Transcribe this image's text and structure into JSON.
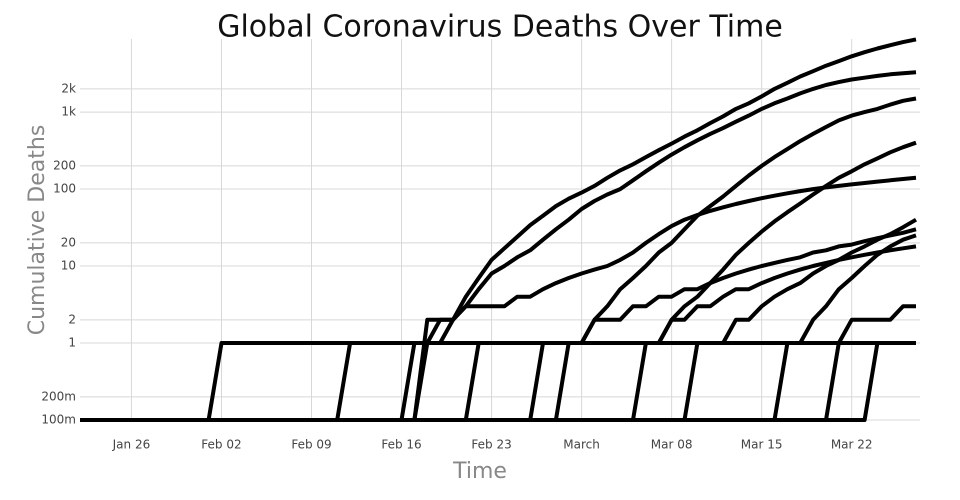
{
  "chart_data": {
    "type": "line",
    "title": "Global Coronavirus Deaths Over Time",
    "xlabel": "Time",
    "ylabel": "Cumulative Deaths",
    "log_y": true,
    "grid": true,
    "x": [
      "Jan 22",
      "Jan 23",
      "Jan 24",
      "Jan 25",
      "Jan 26",
      "Jan 27",
      "Jan 28",
      "Jan 29",
      "Jan 30",
      "Jan 31",
      "Feb 01",
      "Feb 02",
      "Feb 03",
      "Feb 04",
      "Feb 05",
      "Feb 06",
      "Feb 07",
      "Feb 08",
      "Feb 09",
      "Feb 10",
      "Feb 11",
      "Feb 12",
      "Feb 13",
      "Feb 14",
      "Feb 15",
      "Feb 16",
      "Feb 17",
      "Feb 18",
      "Feb 19",
      "Feb 20",
      "Feb 21",
      "Feb 22",
      "Feb 23",
      "Feb 24",
      "Feb 25",
      "Feb 26",
      "Feb 27",
      "Feb 28",
      "Feb 29",
      "Mar 01",
      "Mar 02",
      "Mar 03",
      "Mar 04",
      "Mar 05",
      "Mar 06",
      "Mar 07",
      "Mar 08",
      "Mar 09",
      "Mar 10",
      "Mar 11",
      "Mar 12",
      "Mar 13",
      "Mar 14",
      "Mar 15",
      "Mar 16",
      "Mar 17",
      "Mar 18",
      "Mar 19",
      "Mar 20",
      "Mar 21",
      "Mar 22",
      "Mar 23",
      "Mar 24",
      "Mar 25",
      "Mar 26",
      "Mar 27"
    ],
    "xlim": [
      "Jan 22",
      "Mar 27"
    ],
    "xticks": [
      "Jan 26",
      "Feb 02",
      "Feb 09",
      "Feb 16",
      "Feb 23",
      {
        "value": "Mar 01",
        "label": "March"
      },
      "Mar 08",
      "Mar 15",
      "Mar 22"
    ],
    "ylim": [
      0.1,
      8900
    ],
    "yticks": [
      {
        "value": 0.1,
        "label": "100m"
      },
      {
        "value": 0.2,
        "label": "200m"
      },
      1,
      2,
      10,
      20,
      100,
      200,
      {
        "value": 1000,
        "label": "1k"
      },
      {
        "value": 2000,
        "label": "2k"
      }
    ],
    "series": [
      {
        "color": "#000000",
        "values": [
          0.1,
          0.1,
          0.1,
          0.1,
          0.1,
          0.1,
          0.1,
          0.1,
          0.1,
          0.1,
          0.1,
          0.1,
          0.1,
          0.1,
          0.1,
          0.1,
          0.1,
          0.1,
          0.1,
          0.1,
          0.1,
          0.1,
          0.1,
          0.1,
          0.1,
          0.1,
          0.1,
          1,
          1,
          2,
          4,
          7,
          12,
          17,
          24,
          34,
          45,
          60,
          75,
          90,
          110,
          140,
          175,
          210,
          260,
          320,
          390,
          480,
          580,
          720,
          880,
          1100,
          1300,
          1600,
          2000,
          2400,
          2900,
          3400,
          4000,
          4600,
          5300,
          6000,
          6700,
          7400,
          8100,
          8800
        ]
      },
      {
        "color": "#000000",
        "values": [
          0.1,
          0.1,
          0.1,
          0.1,
          0.1,
          0.1,
          0.1,
          0.1,
          0.1,
          0.1,
          0.1,
          1,
          1,
          1,
          1,
          1,
          1,
          1,
          1,
          1,
          1,
          1,
          1,
          1,
          1,
          1,
          1,
          1,
          2,
          2,
          3,
          5,
          8,
          10,
          13,
          16,
          22,
          30,
          40,
          55,
          70,
          85,
          100,
          130,
          170,
          220,
          280,
          350,
          430,
          520,
          620,
          750,
          900,
          1100,
          1300,
          1500,
          1750,
          2000,
          2250,
          2450,
          2650,
          2800,
          2950,
          3100,
          3200,
          3300
        ]
      },
      {
        "color": "#000000",
        "values": [
          0.1,
          0.1,
          0.1,
          0.1,
          0.1,
          0.1,
          0.1,
          0.1,
          0.1,
          0.1,
          0.1,
          0.1,
          0.1,
          0.1,
          0.1,
          0.1,
          0.1,
          0.1,
          0.1,
          0.1,
          0.1,
          0.1,
          0.1,
          0.1,
          0.1,
          0.1,
          0.1,
          2,
          2,
          2,
          3,
          3,
          3,
          3,
          4,
          4,
          5,
          6,
          7,
          8,
          9,
          10,
          12,
          15,
          20,
          26,
          33,
          40,
          46,
          52,
          58,
          64,
          70,
          76,
          82,
          88,
          94,
          100,
          105,
          110,
          115,
          120,
          125,
          130,
          135,
          140
        ]
      },
      {
        "color": "#000000",
        "values": [
          0.1,
          0.1,
          0.1,
          0.1,
          0.1,
          0.1,
          0.1,
          0.1,
          0.1,
          0.1,
          0.1,
          0.1,
          0.1,
          0.1,
          0.1,
          0.1,
          0.1,
          0.1,
          0.1,
          0.1,
          0.1,
          0.1,
          0.1,
          0.1,
          0.1,
          0.1,
          0.1,
          0.1,
          0.1,
          0.1,
          0.1,
          0.1,
          0.1,
          0.1,
          0.1,
          0.1,
          0.1,
          0.1,
          1,
          1,
          2,
          3,
          5,
          7,
          10,
          15,
          20,
          30,
          45,
          60,
          80,
          110,
          150,
          200,
          260,
          330,
          420,
          520,
          640,
          780,
          900,
          1000,
          1100,
          1250,
          1400,
          1500
        ]
      },
      {
        "color": "#000000",
        "values": [
          0.1,
          0.1,
          0.1,
          0.1,
          0.1,
          0.1,
          0.1,
          0.1,
          0.1,
          0.1,
          0.1,
          0.1,
          0.1,
          0.1,
          0.1,
          0.1,
          0.1,
          0.1,
          0.1,
          0.1,
          0.1,
          0.1,
          0.1,
          0.1,
          0.1,
          0.1,
          0.1,
          0.1,
          0.1,
          0.1,
          0.1,
          0.1,
          0.1,
          0.1,
          0.1,
          0.1,
          0.1,
          0.1,
          0.1,
          0.1,
          0.1,
          0.1,
          0.1,
          0.1,
          1,
          1,
          2,
          3,
          4,
          6,
          9,
          14,
          20,
          28,
          38,
          50,
          65,
          85,
          110,
          140,
          170,
          210,
          250,
          300,
          350,
          400
        ]
      },
      {
        "color": "#000000",
        "values": [
          0.1,
          0.1,
          0.1,
          0.1,
          0.1,
          0.1,
          0.1,
          0.1,
          0.1,
          0.1,
          0.1,
          0.1,
          0.1,
          0.1,
          0.1,
          0.1,
          0.1,
          0.1,
          0.1,
          0.1,
          0.1,
          0.1,
          0.1,
          0.1,
          0.1,
          0.1,
          0.1,
          0.1,
          0.1,
          0.1,
          0.1,
          0.1,
          0.1,
          0.1,
          0.1,
          0.1,
          1,
          1,
          1,
          1,
          2,
          2,
          2,
          3,
          3,
          4,
          4,
          5,
          5,
          6,
          7,
          8,
          9,
          10,
          11,
          12,
          13,
          15,
          16,
          18,
          19,
          21,
          23,
          25,
          27,
          30
        ]
      },
      {
        "color": "#000000",
        "values": [
          0.1,
          0.1,
          0.1,
          0.1,
          0.1,
          0.1,
          0.1,
          0.1,
          0.1,
          0.1,
          0.1,
          0.1,
          0.1,
          0.1,
          0.1,
          0.1,
          0.1,
          0.1,
          0.1,
          0.1,
          0.1,
          1,
          1,
          1,
          1,
          1,
          1,
          1,
          1,
          1,
          1,
          1,
          1,
          1,
          1,
          1,
          1,
          1,
          1,
          1,
          1,
          1,
          1,
          1,
          1,
          1,
          1,
          1,
          1,
          1,
          1,
          1,
          1,
          1,
          1,
          1,
          1,
          1,
          1,
          1,
          2,
          2,
          2,
          2,
          3,
          3
        ]
      },
      {
        "color": "#000000",
        "values": [
          0.1,
          0.1,
          0.1,
          0.1,
          0.1,
          0.1,
          0.1,
          0.1,
          0.1,
          0.1,
          0.1,
          0.1,
          0.1,
          0.1,
          0.1,
          0.1,
          0.1,
          0.1,
          0.1,
          0.1,
          0.1,
          0.1,
          0.1,
          0.1,
          0.1,
          0.1,
          0.1,
          0.1,
          0.1,
          0.1,
          0.1,
          0.1,
          0.1,
          0.1,
          0.1,
          0.1,
          0.1,
          0.1,
          0.1,
          0.1,
          0.1,
          0.1,
          0.1,
          0.1,
          0.1,
          0.1,
          0.1,
          0.1,
          0.1,
          0.1,
          0.1,
          0.1,
          0.1,
          0.1,
          0.1,
          1,
          1,
          2,
          3,
          5,
          7,
          10,
          14,
          18,
          22,
          25
        ]
      },
      {
        "color": "#000000",
        "values": [
          0.1,
          0.1,
          0.1,
          0.1,
          0.1,
          0.1,
          0.1,
          0.1,
          0.1,
          0.1,
          0.1,
          0.1,
          0.1,
          0.1,
          0.1,
          0.1,
          0.1,
          0.1,
          0.1,
          0.1,
          0.1,
          0.1,
          0.1,
          0.1,
          0.1,
          0.1,
          1,
          1,
          1,
          1,
          1,
          1,
          1,
          1,
          1,
          1,
          1,
          1,
          1,
          1,
          1,
          1,
          1,
          1,
          1,
          1,
          1,
          1,
          1,
          1,
          1,
          1,
          1,
          1,
          1,
          1,
          1,
          1,
          1,
          1,
          1,
          1,
          1,
          1,
          1,
          1
        ]
      },
      {
        "color": "#000000",
        "values": [
          0.1,
          0.1,
          0.1,
          0.1,
          0.1,
          0.1,
          0.1,
          0.1,
          0.1,
          0.1,
          0.1,
          0.1,
          0.1,
          0.1,
          0.1,
          0.1,
          0.1,
          0.1,
          0.1,
          0.1,
          0.1,
          0.1,
          0.1,
          0.1,
          0.1,
          0.1,
          0.1,
          0.1,
          0.1,
          0.1,
          0.1,
          0.1,
          0.1,
          0.1,
          0.1,
          0.1,
          0.1,
          0.1,
          0.1,
          0.1,
          0.1,
          0.1,
          0.1,
          0.1,
          0.1,
          0.1,
          0.1,
          0.1,
          1,
          1,
          1,
          2,
          2,
          3,
          4,
          5,
          6,
          8,
          10,
          12,
          15,
          18,
          22,
          26,
          32,
          40
        ]
      },
      {
        "color": "#000000",
        "values": [
          0.1,
          0.1,
          0.1,
          0.1,
          0.1,
          0.1,
          0.1,
          0.1,
          0.1,
          0.1,
          0.1,
          0.1,
          0.1,
          0.1,
          0.1,
          0.1,
          0.1,
          0.1,
          0.1,
          0.1,
          0.1,
          0.1,
          0.1,
          0.1,
          0.1,
          0.1,
          0.1,
          0.1,
          0.1,
          0.1,
          0.1,
          0.1,
          0.1,
          0.1,
          0.1,
          0.1,
          0.1,
          0.1,
          0.1,
          0.1,
          0.1,
          0.1,
          0.1,
          0.1,
          0.1,
          0.1,
          0.1,
          0.1,
          0.1,
          0.1,
          0.1,
          0.1,
          0.1,
          0.1,
          0.1,
          0.1,
          0.1,
          0.1,
          0.1,
          1,
          1,
          1,
          1,
          1,
          1,
          1
        ]
      },
      {
        "color": "#000000",
        "values": [
          0.1,
          0.1,
          0.1,
          0.1,
          0.1,
          0.1,
          0.1,
          0.1,
          0.1,
          0.1,
          0.1,
          0.1,
          0.1,
          0.1,
          0.1,
          0.1,
          0.1,
          0.1,
          0.1,
          0.1,
          0.1,
          0.1,
          0.1,
          0.1,
          0.1,
          0.1,
          0.1,
          0.1,
          0.1,
          0.1,
          0.1,
          0.1,
          0.1,
          0.1,
          0.1,
          0.1,
          0.1,
          0.1,
          0.1,
          0.1,
          0.1,
          0.1,
          0.1,
          0.1,
          0.1,
          0.1,
          0.1,
          0.1,
          0.1,
          0.1,
          0.1,
          0.1,
          0.1,
          0.1,
          0.1,
          0.1,
          0.1,
          0.1,
          0.1,
          0.1,
          0.1,
          0.1,
          1,
          1,
          1,
          1
        ]
      },
      {
        "color": "#000000",
        "values": [
          0.1,
          0.1,
          0.1,
          0.1,
          0.1,
          0.1,
          0.1,
          0.1,
          0.1,
          0.1,
          0.1,
          0.1,
          0.1,
          0.1,
          0.1,
          0.1,
          0.1,
          0.1,
          0.1,
          0.1,
          0.1,
          0.1,
          0.1,
          0.1,
          0.1,
          0.1,
          0.1,
          0.1,
          0.1,
          0.1,
          0.1,
          1,
          1,
          1,
          1,
          1,
          1,
          1,
          1,
          1,
          1,
          1,
          1,
          1,
          1,
          1,
          2,
          2,
          3,
          3,
          4,
          5,
          5,
          6,
          7,
          8,
          9,
          10,
          11,
          12,
          13,
          14,
          15,
          16,
          17,
          18
        ]
      }
    ]
  }
}
